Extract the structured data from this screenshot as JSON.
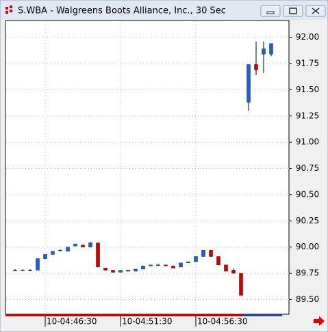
{
  "chart_data": {
    "type": "candlestick",
    "title": "S.WBA - Walgreens Boots Alliance, Inc., 30 Sec",
    "categories": [
      null,
      null,
      null,
      null,
      "10-04:46:30",
      null,
      null,
      null,
      null,
      null,
      null,
      null,
      null,
      null,
      "10-04:51:30",
      null,
      null,
      null,
      null,
      null,
      null,
      null,
      null,
      null,
      "10-04:56:30",
      null,
      null,
      null,
      null,
      null,
      null,
      null,
      null,
      null,
      null
    ],
    "open": [
      89.78,
      89.78,
      89.78,
      89.78,
      89.89,
      89.93,
      89.97,
      89.96,
      90.01,
      90.02,
      90.0,
      90.04,
      89.8,
      89.78,
      89.76,
      89.78,
      89.77,
      89.79,
      89.82,
      89.83,
      89.83,
      89.82,
      89.81,
      89.85,
      89.86,
      89.91,
      89.97,
      89.91,
      89.83,
      89.78,
      89.75,
      91.38,
      91.74,
      91.84,
      91.84
    ],
    "high": [
      89.79,
      89.79,
      89.79,
      89.89,
      89.93,
      89.96,
      89.98,
      90.0,
      90.03,
      90.02,
      90.05,
      90.04,
      89.8,
      89.78,
      89.78,
      89.78,
      89.79,
      89.82,
      89.83,
      89.84,
      89.83,
      89.82,
      89.85,
      89.86,
      89.91,
      89.97,
      89.97,
      89.91,
      89.83,
      89.8,
      89.75,
      91.74,
      91.96,
      91.96,
      91.94
    ],
    "low": [
      89.77,
      89.77,
      89.77,
      89.78,
      89.89,
      89.93,
      89.96,
      89.96,
      90.01,
      90.0,
      90.0,
      89.81,
      89.78,
      89.76,
      89.76,
      89.77,
      89.77,
      89.79,
      89.82,
      89.82,
      89.82,
      89.8,
      89.81,
      89.85,
      89.86,
      89.91,
      89.91,
      89.83,
      89.77,
      89.75,
      89.54,
      91.3,
      91.64,
      91.66,
      91.82
    ],
    "close": [
      89.78,
      89.78,
      89.78,
      89.89,
      89.93,
      89.96,
      89.97,
      90.0,
      90.03,
      90.0,
      90.04,
      89.81,
      89.78,
      89.76,
      89.78,
      89.77,
      89.79,
      89.82,
      89.83,
      89.83,
      89.82,
      89.8,
      89.85,
      89.86,
      89.91,
      89.97,
      89.91,
      89.83,
      89.77,
      89.75,
      89.54,
      91.74,
      91.69,
      91.89,
      91.94
    ],
    "up_color": "#1f5fd0",
    "down_color": "#cc0000",
    "ylim": [
      89.36,
      92.16
    ],
    "yticks": [
      {
        "value": 89.5,
        "label": "89.50"
      },
      {
        "value": 89.75,
        "label": "89.75"
      },
      {
        "value": 90,
        "label": "90.00"
      },
      {
        "value": 90.25,
        "label": "90.25"
      },
      {
        "value": 90.5,
        "label": "90.50"
      },
      {
        "value": 90.75,
        "label": "90.75"
      },
      {
        "value": 91,
        "label": "91.00"
      },
      {
        "value": 91.25,
        "label": "91.25"
      },
      {
        "value": 91.5,
        "label": "91.50"
      },
      {
        "value": 91.75,
        "label": "91.75"
      },
      {
        "value": 92,
        "label": "92.00"
      }
    ],
    "grid": true
  }
}
